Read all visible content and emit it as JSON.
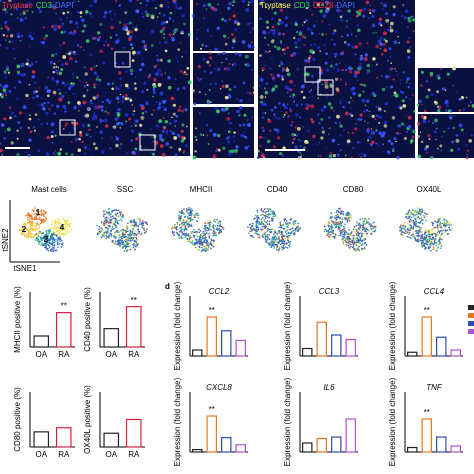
{
  "images": {
    "left_label": [
      "Tryptase",
      "CD3",
      "DAPI"
    ],
    "right_label": [
      "Tryptase",
      "CD3",
      "CD28",
      "DAPI"
    ]
  },
  "tsne": {
    "titles": [
      "Mast cells",
      "SSC",
      "MHCII",
      "CD40",
      "CD80",
      "OX40L"
    ],
    "x_label": "tSNE1",
    "y_label": "tSNE2",
    "clusters": [
      "1",
      "2",
      "3",
      "4"
    ]
  },
  "panel_c": {
    "charts": [
      {
        "y_label": "MHCII positive (%)",
        "categories": [
          "OA",
          "RA"
        ],
        "values": [
          4,
          12.5
        ],
        "ylim": [
          0,
          20
        ],
        "significance": "**"
      },
      {
        "y_label": "CD40 positive (%)",
        "categories": [
          "OA",
          "RA"
        ],
        "values": [
          5,
          11
        ],
        "ylim": [
          0,
          15
        ],
        "significance": "**"
      },
      {
        "y_label": "CD80 positive (%)",
        "categories": [
          "OA",
          "RA"
        ],
        "values": [
          5.5,
          7
        ],
        "ylim": [
          0,
          20
        ]
      },
      {
        "y_label": "OX40L positive (%)",
        "categories": [
          "OA",
          "RA"
        ],
        "values": [
          5,
          10
        ],
        "ylim": [
          0,
          20
        ]
      }
    ]
  },
  "panel_d": {
    "label": "d",
    "y_label": "Expression (fold change)",
    "colors": [
      "#222222",
      "#e87722",
      "#2a4db0",
      "#b44fd6"
    ],
    "charts": [
      {
        "title": "CCL2",
        "values": [
          1,
          6.5,
          4.2,
          2.6
        ],
        "ylim": [
          0,
          10
        ],
        "significance": "**"
      },
      {
        "title": "CCL3",
        "values": [
          1,
          4.5,
          2.8,
          2.2
        ],
        "ylim": [
          0,
          8
        ]
      },
      {
        "title": "CCL4",
        "values": [
          5,
          52,
          25,
          8
        ],
        "ylim": [
          0,
          80
        ],
        "significance": "**"
      },
      {
        "title": "CXCL8",
        "values": [
          2,
          30,
          12,
          6
        ],
        "ylim": [
          0,
          50
        ],
        "significance": "**"
      },
      {
        "title": "IL6",
        "values": [
          0.6,
          0.9,
          1.0,
          2.2
        ],
        "ylim": [
          0,
          4
        ]
      },
      {
        "title": "TNF",
        "values": [
          3,
          22,
          10,
          4
        ],
        "ylim": [
          0,
          40
        ],
        "significance": "**"
      }
    ]
  }
}
